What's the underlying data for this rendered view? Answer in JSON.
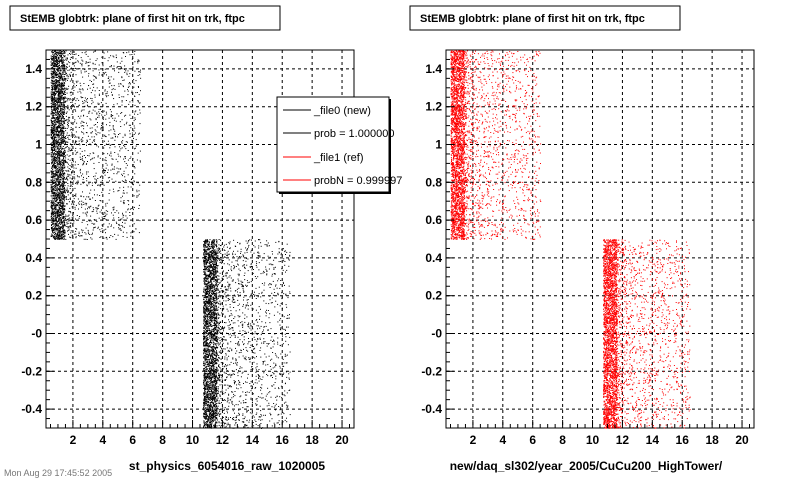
{
  "chart_data": [
    {
      "type": "scatter",
      "title": "StEMB globtrk: plane of first hit on trk, ftpc",
      "xlabel": "st_physics_6054016_raw_1020005",
      "ylabel": "",
      "xlim": [
        0.2,
        20.8
      ],
      "ylim": [
        -0.5,
        1.5
      ],
      "xticks": [
        2,
        4,
        6,
        8,
        10,
        12,
        14,
        16,
        18,
        20
      ],
      "yticks": [
        -0.4,
        -0.2,
        0,
        0.2,
        0.4,
        0.6,
        0.8,
        1.0,
        1.2,
        1.4
      ],
      "ytick_labels": [
        "-0.4",
        "-0.2",
        "-0",
        "0.2",
        "0.4",
        "0.6",
        "0.8",
        "1",
        "1.2",
        "1.4"
      ],
      "grid": true,
      "legend": {
        "placement": "top-right",
        "entries": [
          {
            "label": "_file0 (new)",
            "color": "#000000"
          },
          {
            "label": "prob = 1.000000",
            "color": "#000000"
          },
          {
            "label": "_file1 (ref)",
            "color": "#ff0000"
          },
          {
            "label": "probN = 0.999997",
            "color": "#ff0000"
          }
        ]
      },
      "series": [
        {
          "color": "#000000",
          "clusters": [
            {
              "x_range": [
                0.5,
                6.5
              ],
              "y_range": [
                0.5,
                1.5
              ],
              "dense_until": 1.4
            },
            {
              "x_range": [
                10.7,
                16.5
              ],
              "y_range": [
                -0.5,
                0.5
              ],
              "dense_until": 11.6
            }
          ]
        }
      ]
    },
    {
      "type": "scatter",
      "title": "StEMB globtrk: plane of first hit on trk, ftpc",
      "xlabel": "new/daq_sl302/year_2005/CuCu200_HighTower/",
      "ylabel": "",
      "xlim": [
        0.2,
        20.8
      ],
      "ylim": [
        -0.5,
        1.5
      ],
      "xticks": [
        2,
        4,
        6,
        8,
        10,
        12,
        14,
        16,
        18,
        20
      ],
      "yticks": [
        -0.4,
        -0.2,
        0,
        0.2,
        0.4,
        0.6,
        0.8,
        1.0,
        1.2,
        1.4
      ],
      "ytick_labels": [
        "-0.4",
        "-0.2",
        "-0",
        "0.2",
        "0.4",
        "0.6",
        "0.8",
        "1",
        "1.2",
        "1.4"
      ],
      "grid": true,
      "series": [
        {
          "color": "#ff0000",
          "clusters": [
            {
              "x_range": [
                0.5,
                6.5
              ],
              "y_range": [
                0.5,
                1.5
              ],
              "dense_until": 1.4
            },
            {
              "x_range": [
                10.7,
                16.5
              ],
              "y_range": [
                -0.5,
                0.5
              ],
              "dense_until": 11.6
            }
          ]
        }
      ]
    }
  ],
  "footer_text": "Mon Aug 29 17:45:52 2005"
}
